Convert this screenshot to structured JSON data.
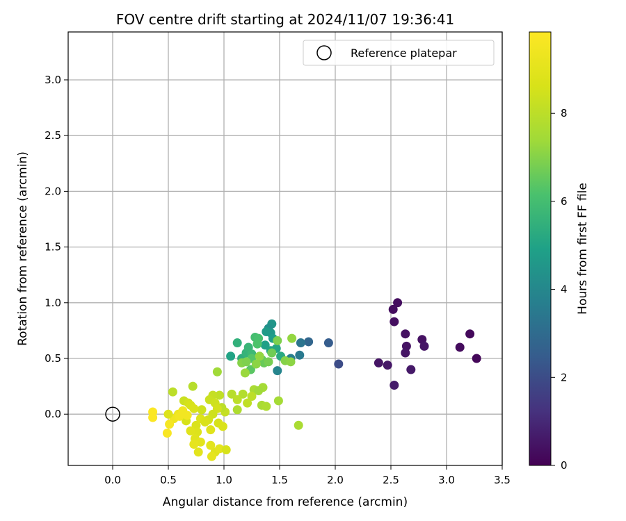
{
  "chart_data": {
    "type": "scatter",
    "title": "FOV centre drift starting at 2024/11/07 19:36:41",
    "xlabel": "Angular distance from reference (arcmin)",
    "ylabel": "Rotation from reference (arcmin)",
    "xlim": [
      -0.4,
      3.5
    ],
    "ylim": [
      -0.46,
      3.43
    ],
    "xticks": [
      "0.0",
      "0.5",
      "1.0",
      "1.5",
      "2.0",
      "2.5",
      "3.0",
      "3.5"
    ],
    "yticks": [
      "0.0",
      "0.5",
      "1.0",
      "1.5",
      "2.0",
      "2.5",
      "3.0"
    ],
    "grid": true,
    "legend": {
      "position": "top-right",
      "entries": [
        "Reference platepar"
      ]
    },
    "reference_point": {
      "x": 0.0,
      "y": 0.0,
      "label": "Reference platepar"
    },
    "colorbar": {
      "label": "Hours from first FF file",
      "colormap": "viridis",
      "min": 0,
      "max": 9.85,
      "ticks": [
        "0",
        "2",
        "4",
        "6",
        "8"
      ]
    },
    "points": [
      [
        2.56,
        1.0,
        0.3
      ],
      [
        2.52,
        0.94,
        0.3
      ],
      [
        2.53,
        0.83,
        0.35
      ],
      [
        2.63,
        0.72,
        0.4
      ],
      [
        2.64,
        0.61,
        0.45
      ],
      [
        2.63,
        0.55,
        0.5
      ],
      [
        2.78,
        0.67,
        0.4
      ],
      [
        2.8,
        0.61,
        0.5
      ],
      [
        3.21,
        0.72,
        0.2
      ],
      [
        3.12,
        0.6,
        0.25
      ],
      [
        3.27,
        0.5,
        0.15
      ],
      [
        2.39,
        0.46,
        0.5
      ],
      [
        2.47,
        0.44,
        0.55
      ],
      [
        2.68,
        0.4,
        0.6
      ],
      [
        2.53,
        0.26,
        0.65
      ],
      [
        2.03,
        0.45,
        2.0
      ],
      [
        1.94,
        0.64,
        2.5
      ],
      [
        1.76,
        0.65,
        2.8
      ],
      [
        1.69,
        0.64,
        3.3
      ],
      [
        1.68,
        0.53,
        3.5
      ],
      [
        1.6,
        0.5,
        3.7
      ],
      [
        1.48,
        0.39,
        3.9
      ],
      [
        1.43,
        0.81,
        4.5
      ],
      [
        1.4,
        0.77,
        4.3
      ],
      [
        1.42,
        0.73,
        4.6
      ],
      [
        1.38,
        0.74,
        4.7
      ],
      [
        1.44,
        0.68,
        4.8
      ],
      [
        1.37,
        0.62,
        4.9
      ],
      [
        1.42,
        0.57,
        5.0
      ],
      [
        1.47,
        0.59,
        5.1
      ],
      [
        1.51,
        0.52,
        5.2
      ],
      [
        1.06,
        0.52,
        5.0
      ],
      [
        1.16,
        0.5,
        5.4
      ],
      [
        1.12,
        0.64,
        5.5
      ],
      [
        1.2,
        0.55,
        5.6
      ],
      [
        1.22,
        0.6,
        5.7
      ],
      [
        1.25,
        0.54,
        5.8
      ],
      [
        1.28,
        0.69,
        6.0
      ],
      [
        1.31,
        0.68,
        6.1
      ],
      [
        1.3,
        0.63,
        6.2
      ],
      [
        1.25,
        0.5,
        6.3
      ],
      [
        1.24,
        0.4,
        6.4
      ],
      [
        1.34,
        0.49,
        6.5
      ],
      [
        1.36,
        0.46,
        6.6
      ],
      [
        1.43,
        0.55,
        6.7
      ],
      [
        1.4,
        0.47,
        6.8
      ],
      [
        1.48,
        0.66,
        6.9
      ],
      [
        1.55,
        0.48,
        7.0
      ],
      [
        1.6,
        0.47,
        7.1
      ],
      [
        1.61,
        0.68,
        7.2
      ],
      [
        1.16,
        0.46,
        7.0
      ],
      [
        1.2,
        0.47,
        6.9
      ],
      [
        1.29,
        0.45,
        7.1
      ],
      [
        1.32,
        0.52,
        7.2
      ],
      [
        1.19,
        0.37,
        7.3
      ],
      [
        0.94,
        0.38,
        7.4
      ],
      [
        1.35,
        0.24,
        7.5
      ],
      [
        1.27,
        0.22,
        7.6
      ],
      [
        1.31,
        0.21,
        7.4
      ],
      [
        1.49,
        0.12,
        7.5
      ],
      [
        1.34,
        0.08,
        7.6
      ],
      [
        1.38,
        0.07,
        7.7
      ],
      [
        1.67,
        -0.1,
        7.6
      ],
      [
        1.07,
        0.18,
        7.9
      ],
      [
        1.17,
        0.18,
        7.8
      ],
      [
        1.12,
        0.13,
        8.0
      ],
      [
        1.21,
        0.1,
        8.1
      ],
      [
        1.12,
        0.04,
        7.7
      ],
      [
        1.25,
        0.16,
        8.0
      ],
      [
        1.01,
        0.02,
        8.2
      ],
      [
        0.98,
        0.06,
        8.0
      ],
      [
        0.96,
        0.17,
        8.1
      ],
      [
        0.9,
        0.17,
        8.2
      ],
      [
        0.87,
        0.13,
        8.3
      ],
      [
        0.92,
        0.1,
        8.4
      ],
      [
        0.94,
        0.05,
        8.5
      ],
      [
        0.9,
        0.0,
        8.4
      ],
      [
        0.95,
        -0.08,
        8.6
      ],
      [
        0.99,
        -0.11,
        8.7
      ],
      [
        0.86,
        -0.05,
        8.5
      ],
      [
        0.8,
        0.04,
        8.4
      ],
      [
        0.72,
        0.25,
        7.9
      ],
      [
        0.54,
        0.2,
        8.0
      ],
      [
        0.64,
        0.12,
        8.3
      ],
      [
        0.68,
        0.1,
        8.5
      ],
      [
        0.7,
        0.08,
        8.6
      ],
      [
        0.73,
        0.05,
        8.7
      ],
      [
        0.66,
        -0.06,
        8.6
      ],
      [
        0.75,
        -0.1,
        8.7
      ],
      [
        0.79,
        -0.04,
        8.8
      ],
      [
        0.83,
        -0.07,
        8.7
      ],
      [
        0.88,
        -0.14,
        8.9
      ],
      [
        0.76,
        -0.16,
        8.8
      ],
      [
        0.7,
        -0.15,
        8.9
      ],
      [
        0.74,
        -0.22,
        8.9
      ],
      [
        0.79,
        -0.25,
        9.0
      ],
      [
        0.73,
        -0.27,
        9.1
      ],
      [
        0.77,
        -0.34,
        9.0
      ],
      [
        0.88,
        -0.28,
        9.0
      ],
      [
        0.92,
        -0.34,
        8.9
      ],
      [
        0.96,
        -0.31,
        9.0
      ],
      [
        1.02,
        -0.32,
        8.6
      ],
      [
        0.89,
        -0.38,
        9.1
      ],
      [
        0.59,
        0.0,
        9.3
      ],
      [
        0.55,
        -0.04,
        9.4
      ],
      [
        0.6,
        -0.02,
        9.5
      ],
      [
        0.63,
        0.03,
        9.5
      ],
      [
        0.5,
        0.0,
        8.8
      ],
      [
        0.51,
        -0.09,
        9.6
      ],
      [
        0.49,
        -0.17,
        9.7
      ],
      [
        0.36,
        0.02,
        9.8
      ],
      [
        0.36,
        -0.03,
        9.8
      ],
      [
        0.67,
        -0.01,
        9.5
      ]
    ]
  }
}
